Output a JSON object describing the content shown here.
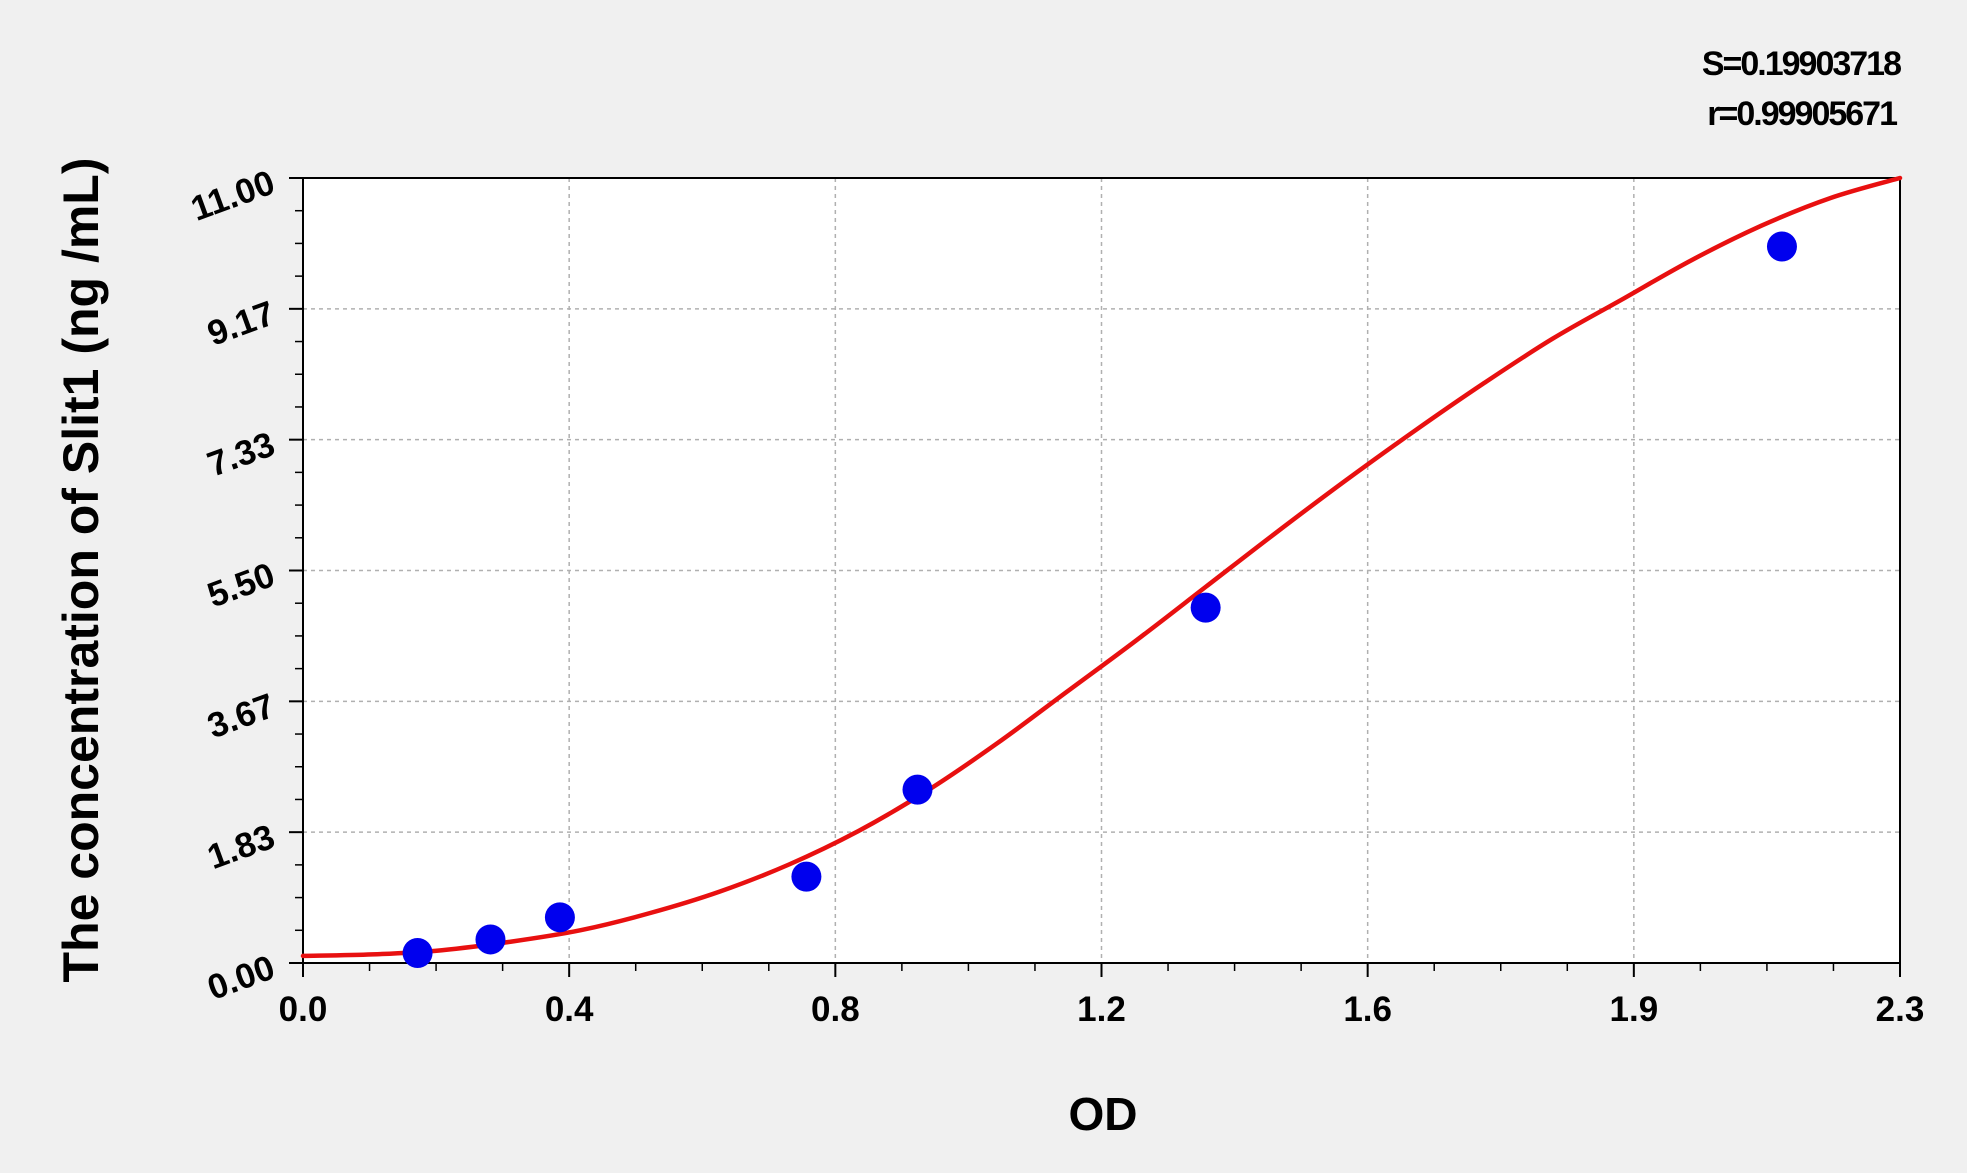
{
  "chart_data": {
    "type": "scatter",
    "title": "",
    "xlabel": "OD",
    "ylabel": "The concentration of Slit1 (ng /mL)",
    "xlim": [
      0.0,
      2.3
    ],
    "ylim": [
      0.0,
      11.0
    ],
    "x_ticks": [
      "0.0",
      "0.4",
      "0.8",
      "1.2",
      "1.6",
      "1.9",
      "2.3"
    ],
    "y_ticks": [
      "0.00",
      "1.83",
      "3.67",
      "5.50",
      "7.33",
      "9.17",
      "11.00"
    ],
    "grid": true,
    "annotations": {
      "s": "S=0.19903718",
      "r": "r=0.99905671"
    },
    "colors": {
      "points": "#0000ee",
      "curve": "#e81010",
      "grid": "#b0b0b0",
      "plot_bg": "#ffffff",
      "page_bg": "#f0f0f0"
    },
    "series": [
      {
        "kind": "points",
        "x": [
          0.165,
          0.27,
          0.37,
          0.725,
          0.885,
          1.3,
          2.13
        ],
        "y": [
          0.14,
          0.33,
          0.64,
          1.21,
          2.43,
          4.98,
          10.04
        ]
      },
      {
        "kind": "fit-curve",
        "x": [
          0.0,
          0.1,
          0.2,
          0.3,
          0.4,
          0.5,
          0.6,
          0.7,
          0.8,
          0.9,
          1.0,
          1.1,
          1.2,
          1.3,
          1.4,
          1.5,
          1.6,
          1.7,
          1.8,
          1.9,
          2.0,
          2.1,
          2.2,
          2.3
        ],
        "y": [
          0.1,
          0.12,
          0.18,
          0.3,
          0.46,
          0.7,
          1.0,
          1.38,
          1.85,
          2.42,
          3.08,
          3.8,
          4.52,
          5.27,
          6.02,
          6.75,
          7.45,
          8.12,
          8.75,
          9.3,
          9.85,
          10.33,
          10.72,
          11.0
        ]
      }
    ]
  }
}
